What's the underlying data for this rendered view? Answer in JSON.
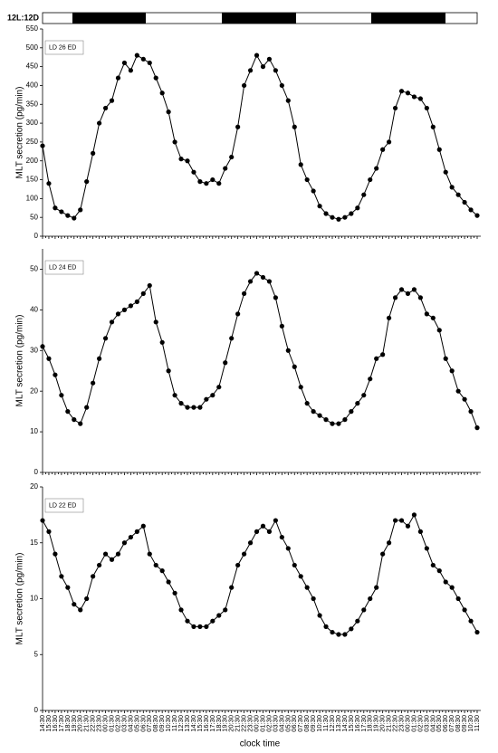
{
  "photoperiod_label": "12L:12D",
  "chart_data": [
    {
      "type": "line",
      "annotation": "LD 26 ED",
      "ylabel": "MLT secretion (pg/min)",
      "color": "#000000",
      "ylim": [
        0,
        550
      ],
      "yticks": [
        0,
        50,
        100,
        150,
        200,
        250,
        300,
        350,
        400,
        450,
        500,
        550
      ],
      "values": [
        240,
        140,
        75,
        65,
        55,
        48,
        70,
        145,
        220,
        300,
        340,
        360,
        420,
        460,
        440,
        480,
        470,
        460,
        420,
        380,
        330,
        250,
        205,
        200,
        170,
        145,
        140,
        150,
        140,
        180,
        210,
        290,
        400,
        440,
        480,
        450,
        470,
        440,
        400,
        360,
        290,
        190,
        150,
        120,
        80,
        60,
        50,
        45,
        50,
        60,
        75,
        110,
        150,
        180,
        230,
        250,
        340,
        385,
        380,
        370,
        365,
        340,
        290,
        230,
        170,
        130,
        110,
        90,
        70,
        55
      ]
    },
    {
      "type": "line",
      "annotation": "LD 24 ED",
      "ylabel": "MLT secretion (pg/min)",
      "color": "#000000",
      "ylim": [
        0,
        55
      ],
      "yticks": [
        0,
        10,
        20,
        30,
        40,
        50
      ],
      "values": [
        31,
        28,
        24,
        19,
        15,
        13,
        12,
        16,
        22,
        28,
        33,
        37,
        39,
        40,
        41,
        42,
        44,
        46,
        37,
        32,
        25,
        19,
        17,
        16,
        16,
        16,
        18,
        19,
        21,
        27,
        33,
        39,
        44,
        47,
        49,
        48,
        47,
        43,
        36,
        30,
        26,
        21,
        17,
        15,
        14,
        13,
        12,
        12,
        13,
        15,
        17,
        19,
        23,
        28,
        29,
        38,
        43,
        45,
        44,
        45,
        43,
        39,
        38,
        35,
        28,
        25,
        20,
        18,
        15,
        11
      ]
    },
    {
      "type": "line",
      "annotation": "LD 22 ED",
      "ylabel": "MLT secretion (pg/min)",
      "xlabel": "clock time",
      "color": "#000000",
      "ylim": [
        0,
        20
      ],
      "yticks": [
        0,
        5,
        10,
        15,
        20
      ],
      "categories": [
        "14:30",
        "15:30",
        "16:30",
        "17:30",
        "18:30",
        "19:30",
        "20:30",
        "21:30",
        "22:30",
        "23:30",
        "00:30",
        "01:30",
        "02:30",
        "03:30",
        "04:30",
        "05:30",
        "06:30",
        "07:30",
        "08:30",
        "09:30",
        "10:30",
        "11:30",
        "12:30",
        "13:30",
        "14:30",
        "15:30",
        "16:30",
        "17:30",
        "18:30",
        "19:30",
        "20:30",
        "21:30",
        "22:30",
        "23:30",
        "00:30",
        "01:30",
        "02:30",
        "03:30",
        "04:30",
        "05:30",
        "06:30",
        "07:30",
        "08:30",
        "09:30",
        "10:30",
        "11:30",
        "12:30",
        "13:30",
        "14:30",
        "15:30",
        "16:30",
        "17:30",
        "18:30",
        "19:30",
        "20:30",
        "21:30",
        "22:30",
        "23:30",
        "00:30",
        "01:30",
        "02:30",
        "03:30",
        "04:30",
        "05:30",
        "06:30",
        "07:30",
        "08:30",
        "09:30",
        "10:30",
        "11:30"
      ],
      "values": [
        17,
        16,
        14,
        12,
        11,
        9.5,
        9,
        10,
        12,
        13,
        14,
        13.5,
        14,
        15,
        15.5,
        16,
        16.5,
        14,
        13,
        12.5,
        11.5,
        10.5,
        9,
        8,
        7.5,
        7.5,
        7.5,
        8,
        8.5,
        9,
        11,
        13,
        14,
        15,
        16,
        16.5,
        16,
        17,
        15.5,
        14.5,
        13,
        12,
        11,
        10,
        8.5,
        7.5,
        7,
        6.8,
        6.8,
        7.3,
        8,
        9,
        10,
        11,
        14,
        15,
        17,
        17,
        16.5,
        17.5,
        16,
        14.5,
        13,
        12.5,
        11.5,
        11,
        10,
        9,
        8,
        7
      ]
    }
  ]
}
